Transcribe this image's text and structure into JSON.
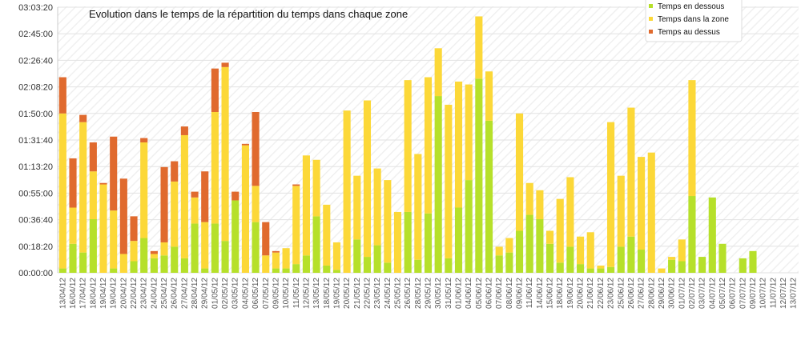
{
  "chart_data": {
    "type": "bar",
    "stacked": true,
    "title": "Evolution dans le temps de la répartition du temps dans chaque zone",
    "xlabel": "",
    "ylabel": "",
    "ylim_minutes": [
      0,
      183.33
    ],
    "yticks": [
      "00:00:00",
      "00:18:20",
      "00:36:40",
      "00:55:00",
      "01:13:20",
      "01:31:40",
      "01:50:00",
      "02:08:20",
      "02:26:40",
      "02:45:00",
      "03:03:20"
    ],
    "grid": true,
    "legend_position": "top-right",
    "value_units": "minutes",
    "categories": [
      "13/04/12",
      "16/04/12",
      "17/04/12",
      "18/04/12",
      "19/04/12",
      "19/04/12",
      "20/04/12",
      "22/04/12",
      "23/04/12",
      "24/04/12",
      "25/04/12",
      "26/04/12",
      "27/04/12",
      "28/04/12",
      "29/04/12",
      "01/05/12",
      "02/05/12",
      "03/05/12",
      "04/05/12",
      "06/05/12",
      "07/05/12",
      "09/05/12",
      "10/05/12",
      "11/05/12",
      "12/05/12",
      "13/05/12",
      "18/05/12",
      "19/05/12",
      "20/05/12",
      "21/05/12",
      "22/05/12",
      "23/05/12",
      "24/05/12",
      "25/05/12",
      "26/05/12",
      "28/05/12",
      "29/05/12",
      "30/05/12",
      "31/05/12",
      "01/06/12",
      "04/06/12",
      "05/06/12",
      "06/06/12",
      "07/06/12",
      "08/06/12",
      "09/06/12",
      "11/06/12",
      "14/06/12",
      "15/06/12",
      "18/06/12",
      "19/06/12",
      "20/06/12",
      "21/06/12",
      "22/06/12",
      "23/06/12",
      "25/06/12",
      "26/06/12",
      "27/06/12",
      "28/06/12",
      "29/06/12",
      "30/06/12",
      "01/07/12",
      "02/07/12",
      "03/07/12",
      "04/07/12",
      "05/07/12",
      "06/07/12",
      "07/07/12",
      "09/07/12",
      "10/07/12",
      "11/07/12",
      "12/07/12",
      "13/07/12"
    ],
    "series": [
      {
        "name": "Temps en dessous",
        "color": "#b6e02a",
        "values": [
          3,
          20,
          14,
          37,
          0,
          3,
          0,
          8,
          24,
          10,
          12,
          18,
          10,
          34,
          3,
          34,
          22,
          50,
          0,
          35,
          0,
          3,
          3,
          6,
          12,
          39,
          5,
          2,
          0,
          23,
          11,
          19,
          7,
          0,
          42,
          9,
          41,
          122,
          10,
          45,
          64,
          134,
          105,
          12,
          14,
          29,
          40,
          37,
          20,
          7,
          18,
          6,
          3,
          3,
          4,
          18,
          25,
          16,
          0,
          0,
          9,
          8,
          53,
          11,
          52,
          20,
          0,
          10,
          15,
          0,
          0,
          0,
          0
        ]
      },
      {
        "name": "Temps dans la zone",
        "color": "#fcd838",
        "values": [
          107,
          25,
          90,
          33,
          61,
          40,
          13,
          14,
          66,
          3,
          9,
          45,
          85,
          18,
          32,
          77,
          120,
          0,
          88,
          25,
          12,
          11,
          14,
          54,
          69,
          39,
          42,
          19,
          112,
          44,
          108,
          53,
          57,
          42,
          91,
          73,
          94,
          33,
          106,
          87,
          66,
          43,
          34,
          6,
          10,
          81,
          22,
          20,
          9,
          44,
          48,
          19,
          25,
          2,
          100,
          49,
          89,
          64,
          83,
          3,
          2,
          15,
          80,
          0,
          0,
          0,
          0,
          0,
          0,
          0,
          0,
          0,
          0
        ]
      },
      {
        "name": "Temps au dessus",
        "color": "#e06a2e",
        "values": [
          25,
          34,
          5,
          20,
          1,
          51,
          52,
          17,
          3,
          2,
          52,
          14,
          6,
          4,
          35,
          30,
          3,
          6,
          1,
          51,
          23,
          1,
          0,
          1,
          0,
          0,
          0,
          0,
          0,
          0,
          0,
          0,
          0,
          0,
          0,
          0,
          0,
          0,
          0,
          0,
          0,
          0,
          0,
          0,
          0,
          0,
          0,
          0,
          0,
          0,
          0,
          0,
          0,
          0,
          0,
          0,
          0,
          0,
          0,
          0,
          0,
          0,
          0,
          0,
          0,
          0,
          0,
          0,
          0,
          0,
          0,
          0,
          0
        ]
      }
    ]
  }
}
